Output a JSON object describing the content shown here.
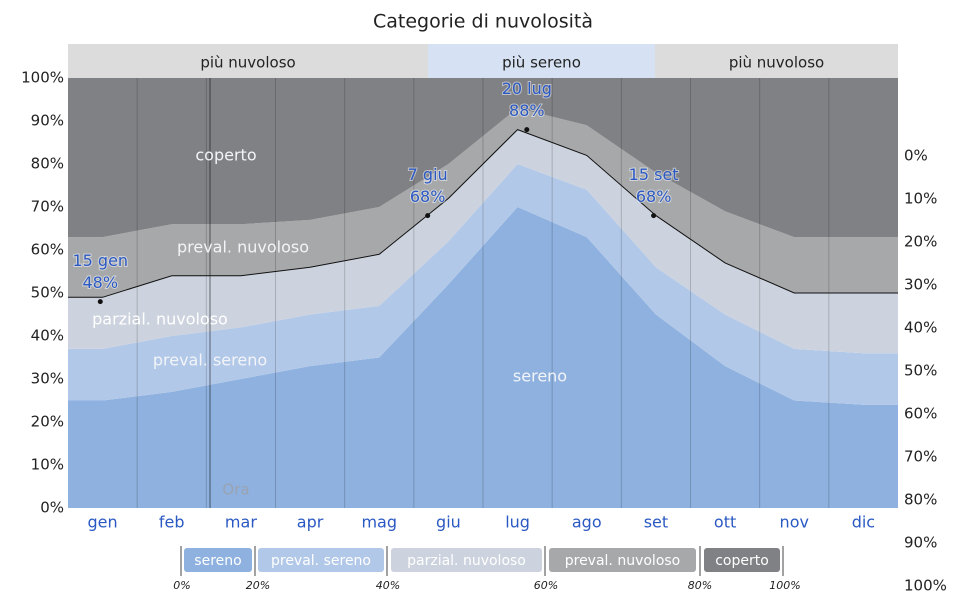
{
  "chart_data": {
    "type": "stacked_area",
    "title": "Categorie di nuvolosità",
    "top_bands": [
      "più nuvoloso",
      "più sereno",
      "più nuvoloso"
    ],
    "categories": [
      "gen",
      "feb",
      "mar",
      "apr",
      "mag",
      "giu",
      "lug",
      "ago",
      "set",
      "ott",
      "nov",
      "dic"
    ],
    "series": [
      {
        "name": "sereno",
        "color": "#8eb1df",
        "values": [
          25,
          27,
          30,
          33,
          35,
          52,
          70,
          63,
          45,
          33,
          25,
          24
        ]
      },
      {
        "name": "preval. sereno",
        "color": "#b2c8e8",
        "values": [
          12,
          13,
          12,
          12,
          12,
          10,
          10,
          11,
          11,
          12,
          12,
          12
        ]
      },
      {
        "name": "parzial. nuvoloso",
        "color": "#ccd3de",
        "values": [
          12,
          14,
          12,
          11,
          12,
          10,
          8,
          8,
          12,
          12,
          13,
          14
        ]
      },
      {
        "name": "preval. nuvoloso",
        "color": "#a7a8aa",
        "values": [
          14,
          12,
          12,
          11,
          11,
          8,
          5,
          7,
          10,
          12,
          13,
          13
        ]
      },
      {
        "name": "coperto",
        "color": "#808184",
        "values": [
          37,
          34,
          34,
          33,
          30,
          20,
          7,
          11,
          22,
          31,
          37,
          37
        ]
      }
    ],
    "annotations": [
      {
        "date": "15 gen",
        "label": "48%",
        "value": 48
      },
      {
        "date": "7 giu",
        "label": "68%",
        "value": 68
      },
      {
        "date": "20 lug",
        "label": "88%",
        "value": 88
      },
      {
        "date": "15 set",
        "label": "68%",
        "value": 68
      }
    ],
    "now_label": "Ora",
    "ylim": [
      0,
      100
    ],
    "yticks": [
      {
        "value": 0,
        "label": "0%"
      },
      {
        "value": 10,
        "label": "10%"
      },
      {
        "value": 20,
        "label": "20%"
      },
      {
        "value": 30,
        "label": "30%"
      },
      {
        "value": 40,
        "label": "40%"
      },
      {
        "value": 50,
        "label": "50%"
      },
      {
        "value": 60,
        "label": "60%"
      },
      {
        "value": 70,
        "label": "70%"
      },
      {
        "value": 80,
        "label": "80%"
      },
      {
        "value": 90,
        "label": "90%"
      },
      {
        "value": 100,
        "label": "100%"
      }
    ],
    "y2lim": [
      100,
      0
    ],
    "y2ticks": [
      {
        "value": 0,
        "label": "0%"
      },
      {
        "value": 10,
        "label": "10%"
      },
      {
        "value": 20,
        "label": "20%"
      },
      {
        "value": 30,
        "label": "30%"
      },
      {
        "value": 40,
        "label": "40%"
      },
      {
        "value": 50,
        "label": "50%"
      },
      {
        "value": 60,
        "label": "60%"
      },
      {
        "value": 70,
        "label": "70%"
      },
      {
        "value": 80,
        "label": "80%"
      },
      {
        "value": 90,
        "label": "90%"
      },
      {
        "value": 100,
        "label": "100%"
      }
    ],
    "legend_scale": [
      "0%",
      "20%",
      "40%",
      "60%",
      "80%",
      "100%"
    ]
  }
}
